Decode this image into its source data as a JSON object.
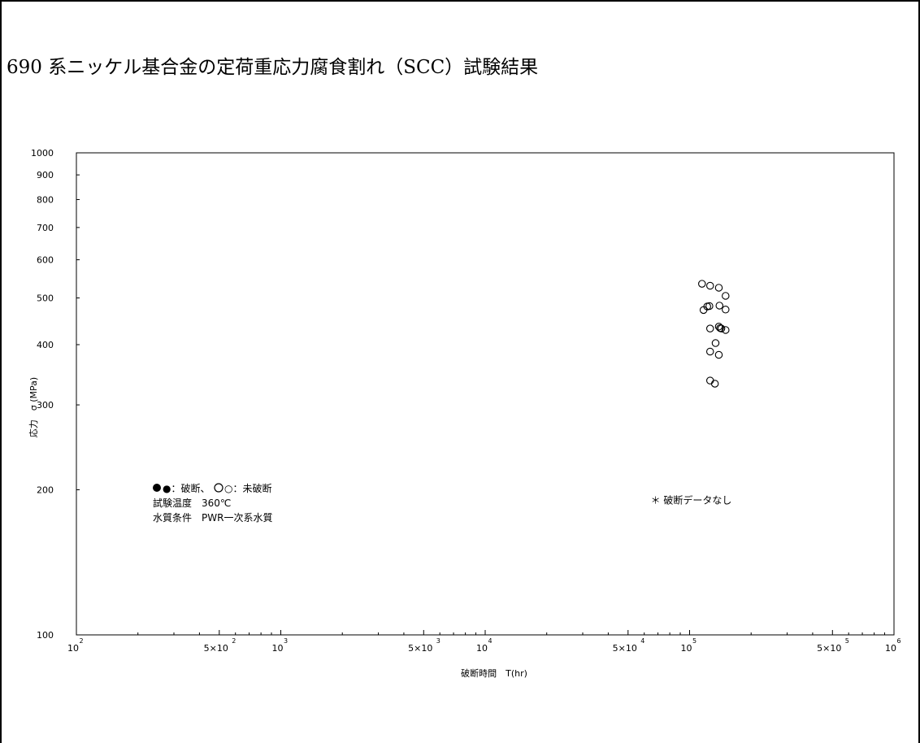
{
  "title": "690 系ニッケル基合金の定荷重応力腐食割れ（SCC）試験結果",
  "chart_data": {
    "type": "scatter",
    "xlabel": "破断時間　T(hr)",
    "ylabel": "応力　σ (MPa)",
    "xscale": "log",
    "yscale": "log",
    "xlim": [
      100,
      1000000
    ],
    "ylim": [
      100,
      1000
    ],
    "grid": false,
    "y_ticks": [
      {
        "value": 100,
        "label": "100"
      },
      {
        "value": 200,
        "label": "200"
      },
      {
        "value": 300,
        "label": "300"
      },
      {
        "value": 400,
        "label": "400"
      },
      {
        "value": 500,
        "label": "500"
      },
      {
        "value": 600,
        "label": "600"
      },
      {
        "value": 700,
        "label": "700"
      },
      {
        "value": 800,
        "label": "800"
      },
      {
        "value": 900,
        "label": "900"
      },
      {
        "value": 1000,
        "label": "1000"
      }
    ],
    "x_ticks": [
      {
        "value": 100,
        "label": "10",
        "sup": "2"
      },
      {
        "value": 500,
        "label": "5×10",
        "sup": "2"
      },
      {
        "value": 1000,
        "label": "10",
        "sup": "3"
      },
      {
        "value": 5000,
        "label": "5×10",
        "sup": "3"
      },
      {
        "value": 10000,
        "label": "10",
        "sup": "4"
      },
      {
        "value": 50000,
        "label": "5×10",
        "sup": "4"
      },
      {
        "value": 100000,
        "label": "10",
        "sup": "5"
      },
      {
        "value": 500000,
        "label": "5×10",
        "sup": "5"
      },
      {
        "value": 1000000,
        "label": "10",
        "sup": "6"
      }
    ],
    "legend": {
      "items": [
        "●：破断、",
        "○：未破断"
      ],
      "conditions": [
        "試験温度　360℃",
        "水質条件　PWR一次系水質"
      ],
      "placement": "bottom-left"
    },
    "annotation": {
      "text": "＊ 破断データなし",
      "x": 72000,
      "y": 190
    },
    "series": [
      {
        "marker": "open-circle",
        "points": [
          {
            "x": 115000,
            "y": 535
          },
          {
            "x": 126000,
            "y": 530
          },
          {
            "x": 139000,
            "y": 525
          },
          {
            "x": 150000,
            "y": 505
          },
          {
            "x": 117000,
            "y": 472
          },
          {
            "x": 122000,
            "y": 480
          },
          {
            "x": 125000,
            "y": 481
          },
          {
            "x": 140000,
            "y": 482
          },
          {
            "x": 150000,
            "y": 473
          },
          {
            "x": 126000,
            "y": 432
          },
          {
            "x": 139000,
            "y": 436
          },
          {
            "x": 141000,
            "y": 433
          },
          {
            "x": 143000,
            "y": 432
          },
          {
            "x": 150000,
            "y": 429
          },
          {
            "x": 134000,
            "y": 403
          },
          {
            "x": 126000,
            "y": 387
          },
          {
            "x": 139000,
            "y": 381
          },
          {
            "x": 126000,
            "y": 337
          },
          {
            "x": 133000,
            "y": 332
          }
        ]
      }
    ]
  }
}
